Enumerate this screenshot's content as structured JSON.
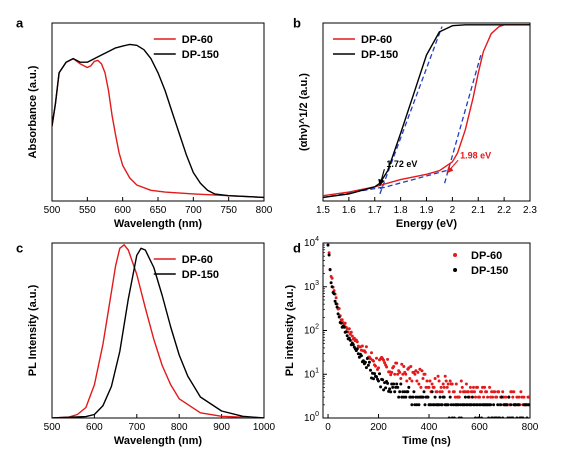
{
  "colors": {
    "red": "#e31a1c",
    "black": "#000000",
    "blue": "#1f3fbf"
  },
  "chart_data": [
    {
      "panel": "a",
      "type": "line",
      "xlabel": "Wavelength (nm)",
      "ylabel": "Absorbance (a.u.)",
      "xlim": [
        500,
        800
      ],
      "ylim": [
        0,
        1
      ],
      "xticks": [
        500,
        550,
        600,
        650,
        700,
        750,
        800
      ],
      "legend_position": "top-right",
      "grid": false,
      "series": [
        {
          "name": "DP-60",
          "color": "red",
          "x": [
            500,
            505,
            510,
            520,
            530,
            540,
            550,
            555,
            560,
            565,
            570,
            575,
            580,
            585,
            590,
            595,
            600,
            610,
            620,
            640,
            660,
            700,
            750,
            800
          ],
          "y": [
            0.42,
            0.55,
            0.72,
            0.78,
            0.8,
            0.77,
            0.75,
            0.76,
            0.785,
            0.79,
            0.77,
            0.72,
            0.62,
            0.48,
            0.37,
            0.27,
            0.2,
            0.13,
            0.09,
            0.06,
            0.05,
            0.04,
            0.03,
            0.02
          ]
        },
        {
          "name": "DP-150",
          "color": "black",
          "x": [
            500,
            505,
            510,
            520,
            530,
            540,
            550,
            560,
            570,
            580,
            590,
            600,
            610,
            620,
            630,
            640,
            650,
            660,
            670,
            680,
            690,
            700,
            710,
            720,
            730,
            750,
            800
          ],
          "y": [
            0.42,
            0.55,
            0.72,
            0.78,
            0.8,
            0.78,
            0.78,
            0.8,
            0.82,
            0.84,
            0.86,
            0.87,
            0.88,
            0.875,
            0.85,
            0.8,
            0.72,
            0.62,
            0.5,
            0.38,
            0.26,
            0.16,
            0.1,
            0.06,
            0.04,
            0.03,
            0.02
          ]
        }
      ]
    },
    {
      "panel": "b",
      "type": "line",
      "xlabel": "Energy (eV)",
      "ylabel": "(αhν)^1/2 (a.u.)",
      "xlim": [
        1.5,
        2.3
      ],
      "ylim": [
        0,
        1
      ],
      "xticks": [
        1.5,
        1.6,
        1.7,
        1.8,
        1.9,
        2.0,
        2.1,
        2.2,
        2.3
      ],
      "legend_position": "top-left",
      "grid": false,
      "series": [
        {
          "name": "DP-60",
          "color": "red",
          "x": [
            1.5,
            1.6,
            1.7,
            1.8,
            1.9,
            1.95,
            2.0,
            2.02,
            2.05,
            2.08,
            2.1,
            2.12,
            2.15,
            2.18,
            2.2,
            2.3
          ],
          "y": [
            0.03,
            0.05,
            0.08,
            0.12,
            0.15,
            0.17,
            0.22,
            0.27,
            0.4,
            0.58,
            0.72,
            0.84,
            0.94,
            0.98,
            0.99,
            0.99
          ]
        },
        {
          "name": "DP-150",
          "color": "black",
          "x": [
            1.5,
            1.6,
            1.7,
            1.72,
            1.75,
            1.8,
            1.85,
            1.9,
            1.95,
            2.0,
            2.05,
            2.1,
            2.2,
            2.3
          ],
          "y": [
            0.02,
            0.04,
            0.08,
            0.1,
            0.17,
            0.38,
            0.6,
            0.82,
            0.95,
            0.985,
            0.99,
            0.99,
            0.99,
            0.99
          ]
        }
      ],
      "fit_lines": [
        {
          "color": "blue",
          "x": [
            1.72,
            1.96
          ],
          "y": [
            0.04,
            0.98
          ]
        },
        {
          "color": "blue",
          "x": [
            1.5,
            1.74
          ],
          "y": [
            0.02,
            0.08
          ]
        },
        {
          "color": "blue",
          "x": [
            1.97,
            2.11
          ],
          "y": [
            0.1,
            0.82
          ]
        },
        {
          "color": "blue",
          "x": [
            1.72,
            2.0
          ],
          "y": [
            0.07,
            0.18
          ]
        }
      ],
      "annotations": [
        {
          "text": "1.72 eV",
          "color": "black",
          "x": 1.745,
          "y": 0.19,
          "arrow_to": [
            1.72,
            0.09
          ]
        },
        {
          "text": "1.98 eV",
          "color": "red",
          "x": 2.03,
          "y": 0.24,
          "arrow_to": [
            1.98,
            0.16
          ]
        }
      ]
    },
    {
      "panel": "c",
      "type": "line",
      "xlabel": "Wavelength (nm)",
      "ylabel": "PL Intensity (a.u.)",
      "xlim": [
        500,
        1000
      ],
      "ylim": [
        0,
        1
      ],
      "xticks": [
        500,
        600,
        700,
        800,
        900,
        1000
      ],
      "legend_position": "top-right",
      "grid": false,
      "series": [
        {
          "name": "DP-60",
          "color": "red",
          "x": [
            500,
            540,
            560,
            580,
            600,
            620,
            640,
            650,
            660,
            670,
            680,
            700,
            720,
            740,
            760,
            780,
            800,
            850,
            900,
            1000
          ],
          "y": [
            0.0,
            0.005,
            0.02,
            0.06,
            0.19,
            0.42,
            0.72,
            0.87,
            0.97,
            0.99,
            0.96,
            0.82,
            0.63,
            0.45,
            0.3,
            0.19,
            0.11,
            0.03,
            0.01,
            0.0
          ]
        },
        {
          "name": "DP-150",
          "color": "black",
          "x": [
            500,
            580,
            600,
            620,
            640,
            660,
            680,
            700,
            710,
            720,
            740,
            760,
            780,
            800,
            820,
            850,
            900,
            950,
            1000
          ],
          "y": [
            0.0,
            0.008,
            0.02,
            0.07,
            0.18,
            0.38,
            0.68,
            0.93,
            0.97,
            0.96,
            0.86,
            0.7,
            0.52,
            0.36,
            0.24,
            0.12,
            0.04,
            0.01,
            0.0
          ]
        }
      ]
    },
    {
      "panel": "d",
      "type": "scatter",
      "xlabel": "Time (ns)",
      "ylabel": "PL intensity (a.u.)",
      "xlim": [
        -20,
        800
      ],
      "ylim": [
        1,
        10000
      ],
      "yscale": "log",
      "xticks": [
        0,
        200,
        400,
        600,
        800
      ],
      "yticks": [
        1,
        10,
        100,
        1000,
        10000
      ],
      "yticklabels_exp": [
        "0",
        "1",
        "2",
        "3",
        "4"
      ],
      "legend_position": "top-right",
      "grid": false,
      "series": [
        {
          "name": "DP-60",
          "color": "red",
          "decay": {
            "t": [
              0,
              10,
              25,
              50,
              100,
              150,
              200,
              250,
              300,
              350,
              400,
              450,
              500,
              550,
              600,
              800
            ],
            "v": [
              10000,
              2000,
              800,
              200,
              70,
              30,
              18,
              13,
              11,
              9,
              7,
              6,
              5,
              4,
              3.5,
              2.5
            ]
          }
        },
        {
          "name": "DP-150",
          "color": "black",
          "decay": {
            "t": [
              0,
              10,
              25,
              50,
              100,
              150,
              200,
              250,
              300,
              350,
              400,
              500,
              600,
              800
            ],
            "v": [
              10000,
              1600,
              600,
              150,
              45,
              17,
              8,
              5,
              3.5,
              3,
              2.5,
              2,
              1.8,
              1.5
            ]
          }
        }
      ]
    }
  ]
}
